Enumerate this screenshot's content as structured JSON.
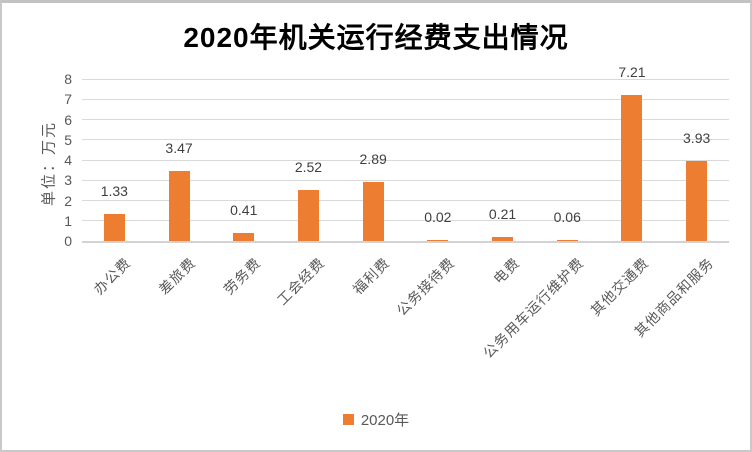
{
  "chart_data": {
    "type": "bar",
    "title": "2020年机关运行经费支出情况",
    "ylabel": "单位：万元",
    "xlabel": "",
    "categories": [
      "办公费",
      "差旅费",
      "劳务费",
      "工会经费",
      "福利费",
      "公务接待费",
      "电费",
      "公务用车运行维护费",
      "其他交通费",
      "其他商品和服务"
    ],
    "series": [
      {
        "name": "2020年",
        "values": [
          1.33,
          3.47,
          0.41,
          2.52,
          2.89,
          0.02,
          0.21,
          0.06,
          7.21,
          3.93
        ],
        "data_labels": [
          "1.33",
          "3.47",
          "0.41",
          "2.52",
          "2.89",
          "0.02",
          "0.21",
          "0.06",
          "7.21",
          "3.93"
        ]
      }
    ],
    "ylim": [
      0,
      8
    ],
    "yticks": [
      0,
      1,
      2,
      3,
      4,
      5,
      6,
      7,
      8
    ],
    "grid": true,
    "legend_position": "bottom",
    "colors": {
      "bar": "#ED7D31",
      "gridline": "#D9D9D9",
      "axis_text": "#595959",
      "data_label_text": "#3F3F3F",
      "title_text": "#000000"
    }
  }
}
